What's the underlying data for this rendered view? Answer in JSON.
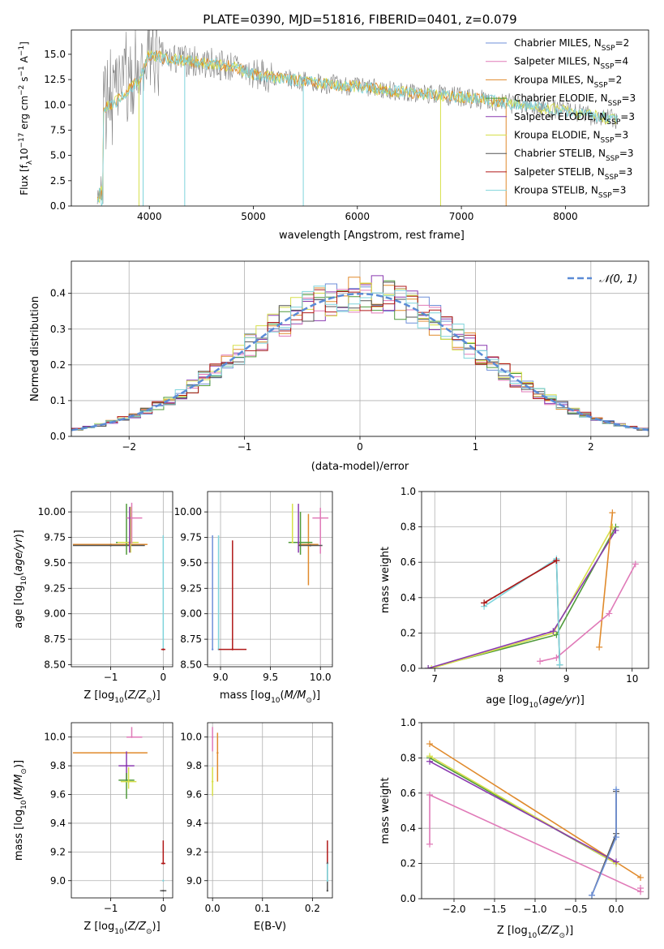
{
  "figure": {
    "title": "PLATE=0390, MJD=51816, FIBERID=0401, z=0.079"
  },
  "colors": {
    "Chabrier MILES": "#6f8fd8",
    "Salpeter MILES": "#e07ab8",
    "Kroupa MILES": "#e08a2c",
    "Chabrier ELODIE": "#4f9a3a",
    "Salpeter ELODIE": "#8a3ab0",
    "Kroupa ELODIE": "#d6df4a",
    "Chabrier STELIB": "#555555",
    "Salpeter STELIB": "#b01818",
    "Kroupa STELIB": "#7fd4dc",
    "normal_curve": "#5b8bd6",
    "spectrum_gray": "#7f7f7f"
  },
  "chart_data": [
    {
      "id": "spectrum",
      "type": "line",
      "xlabel": "wavelength [Angstrom, rest frame]",
      "ylabel": "Flux [f_λ10^-17 erg cm^-2 s^-1 A^-1]",
      "xlim": [
        3250,
        8800
      ],
      "ylim": [
        0,
        17.4
      ],
      "xticks": [
        4000,
        5000,
        6000,
        7000,
        8000
      ],
      "yticks": [
        0.0,
        2.5,
        5.0,
        7.5,
        10.0,
        12.5,
        15.0
      ],
      "legend_position": "top-right",
      "legend": [
        {
          "model": "Chabrier MILES",
          "nssp": "2"
        },
        {
          "model": "Salpeter MILES",
          "nssp": "4"
        },
        {
          "model": "Kroupa MILES",
          "nssp": "2"
        },
        {
          "model": "Chabrier ELODIE",
          "nssp": "3"
        },
        {
          "model": "Salpeter ELODIE",
          "nssp": "3"
        },
        {
          "model": "Kroupa ELODIE",
          "nssp": "3"
        },
        {
          "model": "Chabrier STELIB",
          "nssp": "3"
        },
        {
          "model": "Salpeter STELIB",
          "nssp": "3"
        },
        {
          "model": "Kroupa STELIB",
          "nssp": "3"
        }
      ],
      "continuum": {
        "x": [
          3500,
          3700,
          3900,
          4000,
          4200,
          4500,
          4800,
          5000,
          5500,
          6000,
          6500,
          7000,
          7500,
          8000,
          8500
        ],
        "y": [
          9.2,
          10.5,
          12.5,
          15.0,
          14.5,
          14.2,
          13.8,
          13.0,
          12.3,
          11.8,
          11.2,
          10.8,
          10.1,
          9.4,
          8.5
        ]
      }
    },
    {
      "id": "residuals",
      "type": "line",
      "xlabel": "(data-model)/error",
      "ylabel": "Normed distribution",
      "xlim": [
        -2.5,
        2.5
      ],
      "ylim": [
        0,
        0.49
      ],
      "xticks": [
        -2,
        -1,
        0,
        1,
        2
      ],
      "yticks": [
        0.0,
        0.1,
        0.2,
        0.3,
        0.4
      ],
      "normal_label": "𝒩(0, 1)",
      "grid": true,
      "legend_position": "top-right"
    },
    {
      "id": "age_vs_Z",
      "type": "scatter",
      "xlabel": "Z [log10(Z/Z⊙)]",
      "ylabel": "age  [log10(age/yr)]",
      "xlim": [
        -1.75,
        0.18
      ],
      "ylim": [
        8.48,
        10.2
      ],
      "xticks": [
        -1,
        0
      ],
      "yticks": [
        8.5,
        8.75,
        9.0,
        9.25,
        9.5,
        9.75,
        10.0
      ],
      "grid": true,
      "points": [
        {
          "model": "Kroupa MILES",
          "x": -1.0,
          "y": 9.68,
          "xerr": [
            0.72,
            0.7
          ],
          "yerr": [
            0.0,
            0.0
          ]
        },
        {
          "model": "Chabrier STELIB",
          "x": -1.0,
          "y": 9.67,
          "xerr": [
            0.72,
            0.65
          ],
          "yerr": [
            0.0,
            0.0
          ]
        },
        {
          "model": "Chabrier ELODIE",
          "x": -0.7,
          "y": 9.7,
          "xerr": [
            0.2,
            0.2
          ],
          "yerr": [
            0.12,
            0.38
          ]
        },
        {
          "model": "Kroupa ELODIE",
          "x": -0.62,
          "y": 9.7,
          "xerr": [
            0.25,
            0.15
          ],
          "yerr": [
            0.1,
            0.35
          ]
        },
        {
          "model": "Salpeter MILES",
          "x": -0.6,
          "y": 9.94,
          "xerr": [
            0.1,
            0.2
          ],
          "yerr": [
            0.25,
            0.15
          ]
        },
        {
          "model": "Salpeter ELODIE",
          "x": -0.64,
          "y": 9.7,
          "xerr": [
            0.0,
            0.0
          ],
          "yerr": [
            0.1,
            0.35
          ]
        },
        {
          "model": "Kroupa STELIB",
          "x": 0.0,
          "y": 8.65,
          "xerr": [
            0.0,
            0.0
          ],
          "yerr": [
            0.0,
            1.12
          ]
        },
        {
          "model": "Salpeter STELIB",
          "x": 0.0,
          "y": 8.65,
          "xerr": [
            0.04,
            0.04
          ],
          "yerr": [
            0.0,
            0.0
          ]
        }
      ]
    },
    {
      "id": "age_vs_mass",
      "type": "scatter",
      "xlabel": "mass [log10(M/M⊙)]",
      "ylabel": "",
      "xlim": [
        8.87,
        10.12
      ],
      "ylim": [
        8.48,
        10.2
      ],
      "xticks": [
        9.0,
        9.5,
        10.0
      ],
      "yticks": [
        8.5,
        8.75,
        9.0,
        9.25,
        9.5,
        9.75,
        10.0
      ],
      "grid": true,
      "points": [
        {
          "model": "Kroupa MILES",
          "x": 9.88,
          "y": 9.68,
          "xerr": [
            0.1,
            0.1
          ],
          "yerr": [
            0.4,
            0.3
          ]
        },
        {
          "model": "Chabrier ELODIE",
          "x": 9.8,
          "y": 9.7,
          "xerr": [
            0.12,
            0.12
          ],
          "yerr": [
            0.12,
            0.3
          ]
        },
        {
          "model": "Kroupa ELODIE",
          "x": 9.72,
          "y": 9.7,
          "xerr": [
            0.0,
            0.0
          ],
          "yerr": [
            0.0,
            0.38
          ]
        },
        {
          "model": "Salpeter MILES",
          "x": 10.0,
          "y": 9.94,
          "xerr": [
            0.08,
            0.08
          ],
          "yerr": [
            0.35,
            0.1
          ]
        },
        {
          "model": "Salpeter ELODIE",
          "x": 9.78,
          "y": 9.7,
          "xerr": [
            0.0,
            0.0
          ],
          "yerr": [
            0.1,
            0.38
          ]
        },
        {
          "model": "Chabrier STELIB",
          "x": 9.9,
          "y": 9.67,
          "xerr": [
            0.12,
            0.12
          ],
          "yerr": [
            0.0,
            0.0
          ]
        },
        {
          "model": "Kroupa STELIB",
          "x": 8.98,
          "y": 8.65,
          "xerr": [
            0.0,
            0.0
          ],
          "yerr": [
            0.0,
            1.12
          ]
        },
        {
          "model": "Salpeter STELIB",
          "x": 9.12,
          "y": 8.65,
          "xerr": [
            0.14,
            0.14
          ],
          "yerr": [
            0.0,
            1.07
          ]
        },
        {
          "model": "Chabrier MILES",
          "x": 8.92,
          "y": 8.65,
          "xerr": [
            0.0,
            0.0
          ],
          "yerr": [
            0.0,
            1.12
          ]
        }
      ]
    },
    {
      "id": "weight_vs_age",
      "type": "line",
      "xlabel": "age  [log10(age/yr)]",
      "ylabel": "mass weight",
      "xlim": [
        6.8,
        10.25
      ],
      "ylim": [
        0,
        1.0
      ],
      "xticks": [
        7,
        8,
        9,
        10
      ],
      "yticks": [
        0.0,
        0.2,
        0.4,
        0.6,
        0.8,
        1.0
      ],
      "grid": true,
      "series": [
        {
          "model": "Chabrier ELODIE",
          "x": [
            6.9,
            8.85,
            9.75
          ],
          "y": [
            0.0,
            0.19,
            0.8
          ]
        },
        {
          "model": "Kroupa ELODIE",
          "x": [
            6.95,
            8.8,
            9.7
          ],
          "y": [
            0.0,
            0.2,
            0.8
          ]
        },
        {
          "model": "Salpeter ELODIE",
          "x": [
            6.9,
            8.8,
            9.75
          ],
          "y": [
            0.0,
            0.21,
            0.78
          ]
        },
        {
          "model": "Kroupa MILES",
          "x": [
            9.5,
            9.7
          ],
          "y": [
            0.12,
            0.88
          ]
        },
        {
          "model": "Salpeter MILES",
          "x": [
            8.6,
            8.85,
            9.65,
            10.05
          ],
          "y": [
            0.04,
            0.06,
            0.31,
            0.59
          ]
        },
        {
          "model": "Chabrier STELIB",
          "x": [
            7.75,
            8.85,
            8.9
          ],
          "y": [
            0.37,
            0.61,
            0.02
          ]
        },
        {
          "model": "Kroupa STELIB",
          "x": [
            7.75,
            8.85,
            8.9
          ],
          "y": [
            0.35,
            0.62,
            0.02
          ]
        },
        {
          "model": "Salpeter STELIB",
          "x": [
            7.75,
            8.85
          ],
          "y": [
            0.37,
            0.61
          ]
        }
      ]
    },
    {
      "id": "mass_vs_Z",
      "type": "scatter",
      "xlabel": "Z [log10(Z/Z⊙)]",
      "ylabel": "mass [log10(M/M⊙)]",
      "xlim": [
        -1.75,
        0.18
      ],
      "ylim": [
        8.88,
        10.1
      ],
      "xticks": [
        -1,
        0
      ],
      "yticks": [
        9.0,
        9.2,
        9.4,
        9.6,
        9.8,
        10.0
      ],
      "grid": true,
      "points": [
        {
          "model": "Kroupa MILES",
          "x": -1.0,
          "y": 9.89,
          "xerr": [
            0.72,
            0.7
          ],
          "yerr": [
            0.0,
            0.0
          ]
        },
        {
          "model": "Salpeter MILES",
          "x": -0.6,
          "y": 10.0,
          "xerr": [
            0.1,
            0.2
          ],
          "yerr": [
            0.0,
            0.07
          ]
        },
        {
          "model": "Salpeter ELODIE",
          "x": -0.7,
          "y": 9.8,
          "xerr": [
            0.15,
            0.15
          ],
          "yerr": [
            0.1,
            0.1
          ]
        },
        {
          "model": "Chabrier ELODIE",
          "x": -0.7,
          "y": 9.7,
          "xerr": [
            0.15,
            0.15
          ],
          "yerr": [
            0.13,
            0.05
          ]
        },
        {
          "model": "Kroupa ELODIE",
          "x": -0.66,
          "y": 9.69,
          "xerr": [
            0.15,
            0.15
          ],
          "yerr": [
            0.05,
            0.1
          ]
        },
        {
          "model": "Salpeter STELIB",
          "x": 0.0,
          "y": 9.12,
          "xerr": [
            0.04,
            0.04
          ],
          "yerr": [
            0.0,
            0.16
          ]
        },
        {
          "model": "Chabrier STELIB",
          "x": 0.0,
          "y": 8.93,
          "xerr": [
            0.06,
            0.06
          ],
          "yerr": [
            0.0,
            0.0
          ]
        },
        {
          "model": "Kroupa STELIB",
          "x": 0.0,
          "y": 9.0,
          "xerr": [
            0.0,
            0.0
          ],
          "yerr": [
            0.0,
            0.0
          ]
        }
      ]
    },
    {
      "id": "mass_vs_EBV",
      "type": "scatter",
      "xlabel": "E(B-V)",
      "ylabel": "",
      "xlim": [
        -0.01,
        0.24
      ],
      "ylim": [
        8.88,
        10.1
      ],
      "xticks": [
        0.0,
        0.1,
        0.2
      ],
      "yticks": [
        9.0,
        9.2,
        9.4,
        9.6,
        9.8,
        10.0
      ],
      "grid": true,
      "points": [
        {
          "model": "Salpeter MILES",
          "x": 0.0,
          "y": 10.0,
          "xerr": [
            0.0,
            0.0
          ],
          "yerr": [
            0.1,
            0.07
          ]
        },
        {
          "model": "Kroupa MILES",
          "x": 0.01,
          "y": 9.89,
          "xerr": [
            0.0,
            0.0
          ],
          "yerr": [
            0.2,
            0.14
          ]
        },
        {
          "model": "Kroupa ELODIE",
          "x": 0.0,
          "y": 9.69,
          "xerr": [
            0.0,
            0.0
          ],
          "yerr": [
            0.1,
            0.1
          ]
        },
        {
          "model": "Salpeter STELIB",
          "x": 0.23,
          "y": 9.12,
          "xerr": [
            0.0,
            0.0
          ],
          "yerr": [
            0.0,
            0.16
          ]
        },
        {
          "model": "Chabrier STELIB",
          "x": 0.23,
          "y": 8.93,
          "xerr": [
            0.0,
            0.0
          ],
          "yerr": [
            0.0,
            0.2
          ]
        },
        {
          "model": "Kroupa STELIB",
          "x": 0.23,
          "y": 9.0,
          "xerr": [
            0.0,
            0.0
          ],
          "yerr": [
            0.0,
            0.12
          ]
        }
      ]
    },
    {
      "id": "weight_vs_Z",
      "type": "line",
      "xlabel": "Z [log10(Z/Z⊙)]",
      "ylabel": "mass weight",
      "xlim": [
        -2.4,
        0.4
      ],
      "ylim": [
        0,
        1.0
      ],
      "xticks": [
        -2.0,
        -1.5,
        -1.0,
        -0.5,
        0.0
      ],
      "yticks": [
        0.0,
        0.2,
        0.4,
        0.6,
        0.8,
        1.0
      ],
      "grid": true,
      "series": [
        {
          "model": "Kroupa MILES",
          "x": [
            -2.3,
            0.3
          ],
          "y": [
            0.88,
            0.12
          ]
        },
        {
          "model": "Chabrier ELODIE",
          "x": [
            -2.3,
            0.0
          ],
          "y": [
            0.8,
            0.2
          ]
        },
        {
          "model": "Kroupa ELODIE",
          "x": [
            -2.3,
            0.0
          ],
          "y": [
            0.81,
            0.2
          ]
        },
        {
          "model": "Salpeter ELODIE",
          "x": [
            -2.3,
            0.0
          ],
          "y": [
            0.78,
            0.21
          ]
        },
        {
          "model": "Salpeter MILES",
          "x": [
            -2.3,
            -2.3,
            0.3,
            0.3
          ],
          "y": [
            0.31,
            0.59,
            0.04,
            0.06
          ]
        },
        {
          "model": "Kroupa STELIB",
          "x": [
            -0.3,
            0.0,
            0.0
          ],
          "y": [
            0.02,
            0.35,
            0.62
          ]
        },
        {
          "model": "Chabrier STELIB",
          "x": [
            -0.3,
            0.0,
            0.0
          ],
          "y": [
            0.02,
            0.37,
            0.61
          ]
        },
        {
          "model": "Chabrier MILES",
          "x": [
            -0.3,
            0.0,
            0.0
          ],
          "y": [
            0.02,
            0.35,
            0.62
          ]
        }
      ]
    }
  ]
}
